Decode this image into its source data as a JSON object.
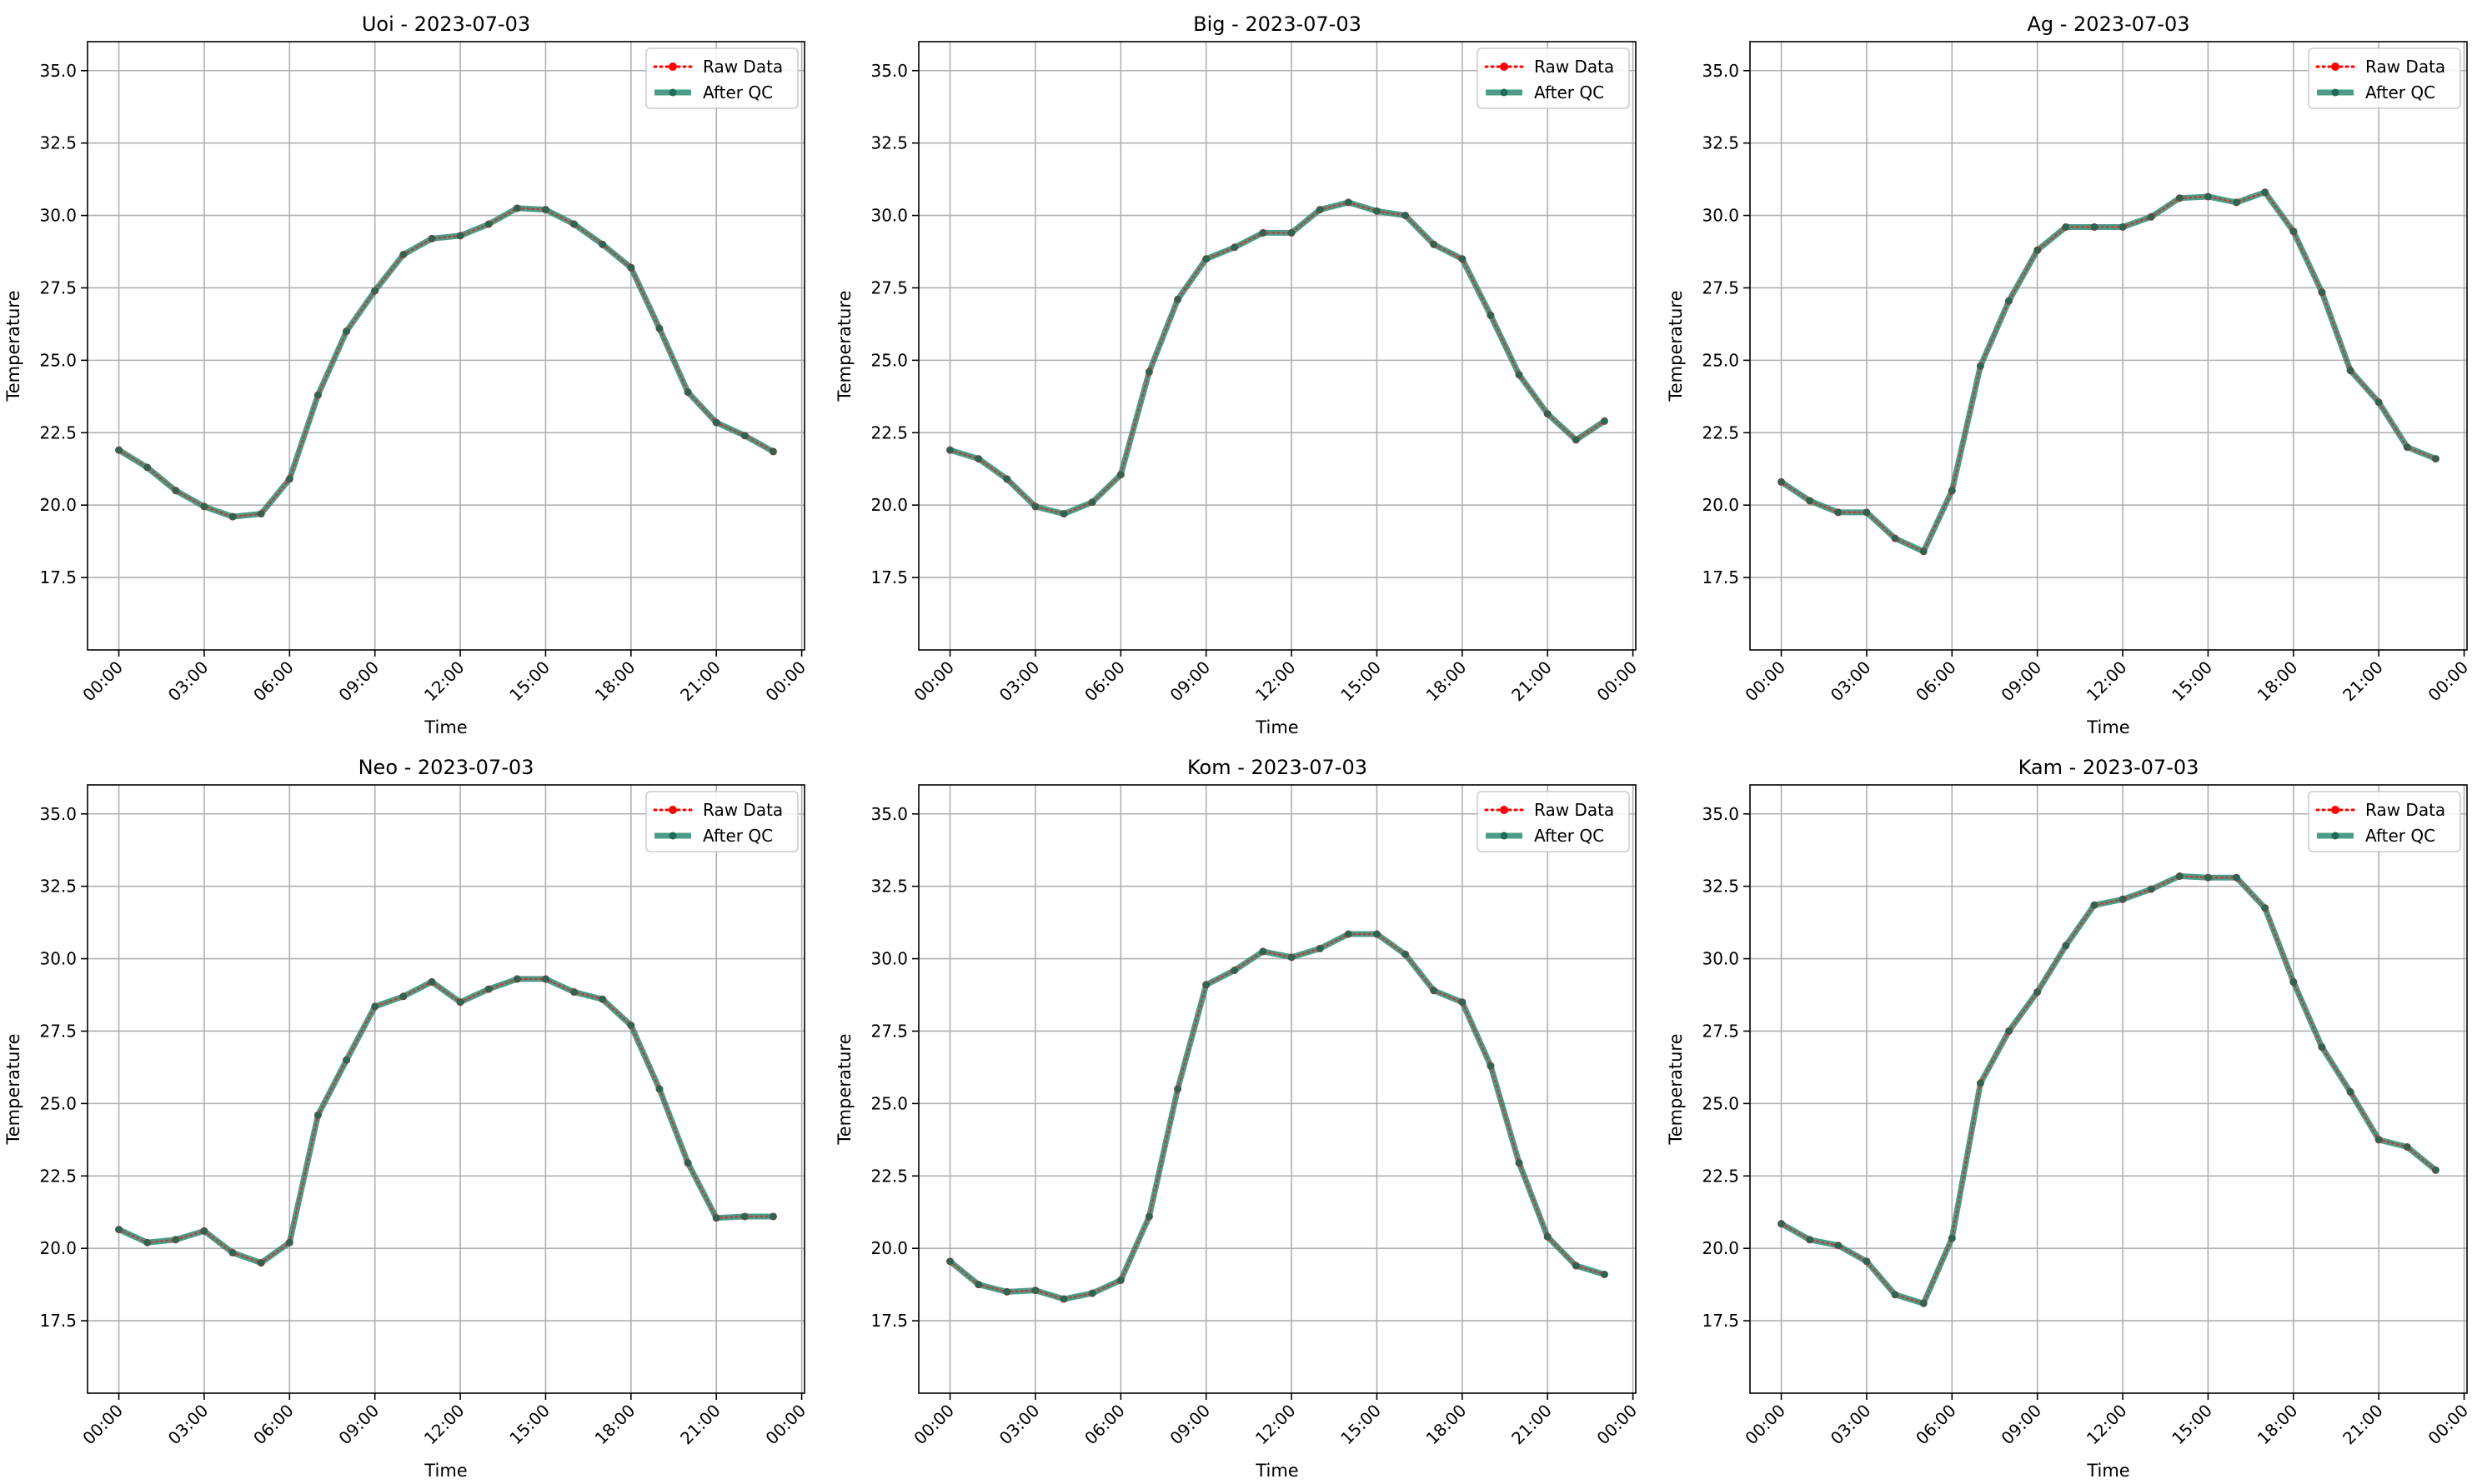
{
  "colors": {
    "raw": "#ff0000",
    "after_qc": "#2e8b74",
    "after_qc_marker": "#1f6b58",
    "grid": "#b0b0b0"
  },
  "chart_data": [
    {
      "type": "line",
      "title": "Uoi - 2023-07-03",
      "xlabel": "Time",
      "ylabel": "Temperature",
      "x": [
        "00:00",
        "01:00",
        "02:00",
        "03:00",
        "04:00",
        "05:00",
        "06:00",
        "07:00",
        "08:00",
        "09:00",
        "10:00",
        "11:00",
        "12:00",
        "13:00",
        "14:00",
        "15:00",
        "16:00",
        "17:00",
        "18:00",
        "19:00",
        "20:00",
        "21:00",
        "22:00",
        "23:00"
      ],
      "xticks": [
        "00:00",
        "03:00",
        "06:00",
        "09:00",
        "12:00",
        "15:00",
        "18:00",
        "21:00",
        "00:00"
      ],
      "yticks": [
        "17.5",
        "20.0",
        "22.5",
        "25.0",
        "27.5",
        "30.0",
        "32.5",
        "35.0"
      ],
      "ylim": [
        15.0,
        36.0
      ],
      "grid": true,
      "legend_position": "top-right",
      "series": [
        {
          "name": "Raw Data",
          "style": "dotted",
          "values": [
            21.9,
            21.3,
            20.5,
            19.95,
            19.6,
            19.7,
            20.9,
            23.8,
            26.0,
            27.4,
            28.65,
            29.2,
            29.3,
            29.7,
            30.25,
            30.2,
            29.7,
            29.0,
            28.2,
            26.1,
            23.9,
            22.85,
            22.4,
            21.85
          ]
        },
        {
          "name": "After QC",
          "style": "solid",
          "values": [
            21.9,
            21.3,
            20.5,
            19.95,
            19.6,
            19.7,
            20.9,
            23.8,
            26.0,
            27.4,
            28.65,
            29.2,
            29.3,
            29.7,
            30.25,
            30.2,
            29.7,
            29.0,
            28.2,
            26.1,
            23.9,
            22.85,
            22.4,
            21.85
          ]
        }
      ]
    },
    {
      "type": "line",
      "title": "Big - 2023-07-03",
      "xlabel": "Time",
      "ylabel": "Temperature",
      "x": [
        "00:00",
        "01:00",
        "02:00",
        "03:00",
        "04:00",
        "05:00",
        "06:00",
        "07:00",
        "08:00",
        "09:00",
        "10:00",
        "11:00",
        "12:00",
        "13:00",
        "14:00",
        "15:00",
        "16:00",
        "17:00",
        "18:00",
        "19:00",
        "20:00",
        "21:00",
        "22:00",
        "23:00"
      ],
      "xticks": [
        "00:00",
        "03:00",
        "06:00",
        "09:00",
        "12:00",
        "15:00",
        "18:00",
        "21:00",
        "00:00"
      ],
      "yticks": [
        "17.5",
        "20.0",
        "22.5",
        "25.0",
        "27.5",
        "30.0",
        "32.5",
        "35.0"
      ],
      "ylim": [
        15.0,
        36.0
      ],
      "grid": true,
      "legend_position": "top-right",
      "series": [
        {
          "name": "Raw Data",
          "style": "dotted",
          "values": [
            21.9,
            21.6,
            20.9,
            19.95,
            19.7,
            20.1,
            21.05,
            24.6,
            27.1,
            28.5,
            28.9,
            29.4,
            29.4,
            30.2,
            30.45,
            30.15,
            30.0,
            29.0,
            28.5,
            26.55,
            24.5,
            23.15,
            22.25,
            22.9
          ]
        },
        {
          "name": "After QC",
          "style": "solid",
          "values": [
            21.9,
            21.6,
            20.9,
            19.95,
            19.7,
            20.1,
            21.05,
            24.6,
            27.1,
            28.5,
            28.9,
            29.4,
            29.4,
            30.2,
            30.45,
            30.15,
            30.0,
            29.0,
            28.5,
            26.55,
            24.5,
            23.15,
            22.25,
            22.9
          ]
        }
      ]
    },
    {
      "type": "line",
      "title": "Ag - 2023-07-03",
      "xlabel": "Time",
      "ylabel": "Temperature",
      "x": [
        "00:00",
        "01:00",
        "02:00",
        "03:00",
        "04:00",
        "05:00",
        "06:00",
        "07:00",
        "08:00",
        "09:00",
        "10:00",
        "11:00",
        "12:00",
        "13:00",
        "14:00",
        "15:00",
        "16:00",
        "17:00",
        "18:00",
        "19:00",
        "20:00",
        "21:00",
        "22:00",
        "23:00"
      ],
      "xticks": [
        "00:00",
        "03:00",
        "06:00",
        "09:00",
        "12:00",
        "15:00",
        "18:00",
        "21:00",
        "00:00"
      ],
      "yticks": [
        "17.5",
        "20.0",
        "22.5",
        "25.0",
        "27.5",
        "30.0",
        "32.5",
        "35.0"
      ],
      "ylim": [
        15.0,
        36.0
      ],
      "grid": true,
      "legend_position": "top-right",
      "series": [
        {
          "name": "Raw Data",
          "style": "dotted",
          "values": [
            20.8,
            20.15,
            19.75,
            19.75,
            18.85,
            18.4,
            20.5,
            24.8,
            27.05,
            28.8,
            29.6,
            29.6,
            29.6,
            29.95,
            30.6,
            30.65,
            30.45,
            30.8,
            29.45,
            27.35,
            24.65,
            23.55,
            22.0,
            21.6
          ]
        },
        {
          "name": "After QC",
          "style": "solid",
          "values": [
            20.8,
            20.15,
            19.75,
            19.75,
            18.85,
            18.4,
            20.5,
            24.8,
            27.05,
            28.8,
            29.6,
            29.6,
            29.6,
            29.95,
            30.6,
            30.65,
            30.45,
            30.8,
            29.45,
            27.35,
            24.65,
            23.55,
            22.0,
            21.6
          ]
        }
      ]
    },
    {
      "type": "line",
      "title": "Neo - 2023-07-03",
      "xlabel": "Time",
      "ylabel": "Temperature",
      "x": [
        "00:00",
        "01:00",
        "02:00",
        "03:00",
        "04:00",
        "05:00",
        "06:00",
        "07:00",
        "08:00",
        "09:00",
        "10:00",
        "11:00",
        "12:00",
        "13:00",
        "14:00",
        "15:00",
        "16:00",
        "17:00",
        "18:00",
        "19:00",
        "20:00",
        "21:00",
        "22:00",
        "23:00"
      ],
      "xticks": [
        "00:00",
        "03:00",
        "06:00",
        "09:00",
        "12:00",
        "15:00",
        "18:00",
        "21:00",
        "00:00"
      ],
      "yticks": [
        "17.5",
        "20.0",
        "22.5",
        "25.0",
        "27.5",
        "30.0",
        "32.5",
        "35.0"
      ],
      "ylim": [
        15.0,
        36.0
      ],
      "grid": true,
      "legend_position": "top-right",
      "series": [
        {
          "name": "Raw Data",
          "style": "dotted",
          "values": [
            20.65,
            20.2,
            20.3,
            20.6,
            19.85,
            19.5,
            20.2,
            24.6,
            26.5,
            28.35,
            28.7,
            29.2,
            28.5,
            28.95,
            29.3,
            29.3,
            28.85,
            28.6,
            27.7,
            25.5,
            22.95,
            21.05,
            21.1,
            21.1
          ]
        },
        {
          "name": "After QC",
          "style": "solid",
          "values": [
            20.65,
            20.2,
            20.3,
            20.6,
            19.85,
            19.5,
            20.2,
            24.6,
            26.5,
            28.35,
            28.7,
            29.2,
            28.5,
            28.95,
            29.3,
            29.3,
            28.85,
            28.6,
            27.7,
            25.5,
            22.95,
            21.05,
            21.1,
            21.1
          ]
        }
      ]
    },
    {
      "type": "line",
      "title": "Kom - 2023-07-03",
      "xlabel": "Time",
      "ylabel": "Temperature",
      "x": [
        "00:00",
        "01:00",
        "02:00",
        "03:00",
        "04:00",
        "05:00",
        "06:00",
        "07:00",
        "08:00",
        "09:00",
        "10:00",
        "11:00",
        "12:00",
        "13:00",
        "14:00",
        "15:00",
        "16:00",
        "17:00",
        "18:00",
        "19:00",
        "20:00",
        "21:00",
        "22:00",
        "23:00"
      ],
      "xticks": [
        "00:00",
        "03:00",
        "06:00",
        "09:00",
        "12:00",
        "15:00",
        "18:00",
        "21:00",
        "00:00"
      ],
      "yticks": [
        "17.5",
        "20.0",
        "22.5",
        "25.0",
        "27.5",
        "30.0",
        "32.5",
        "35.0"
      ],
      "ylim": [
        15.0,
        36.0
      ],
      "grid": true,
      "legend_position": "top-right",
      "series": [
        {
          "name": "Raw Data",
          "style": "dotted",
          "values": [
            19.55,
            18.75,
            18.5,
            18.55,
            18.25,
            18.45,
            18.9,
            21.1,
            25.5,
            29.1,
            29.6,
            30.25,
            30.05,
            30.35,
            30.85,
            30.85,
            30.15,
            28.9,
            28.5,
            26.3,
            22.95,
            20.4,
            19.4,
            19.1
          ]
        },
        {
          "name": "After QC",
          "style": "solid",
          "values": [
            19.55,
            18.75,
            18.5,
            18.55,
            18.25,
            18.45,
            18.9,
            21.1,
            25.5,
            29.1,
            29.6,
            30.25,
            30.05,
            30.35,
            30.85,
            30.85,
            30.15,
            28.9,
            28.5,
            26.3,
            22.95,
            20.4,
            19.4,
            19.1
          ]
        }
      ]
    },
    {
      "type": "line",
      "title": "Kam - 2023-07-03",
      "xlabel": "Time",
      "ylabel": "Temperature",
      "x": [
        "00:00",
        "01:00",
        "02:00",
        "03:00",
        "04:00",
        "05:00",
        "06:00",
        "07:00",
        "08:00",
        "09:00",
        "10:00",
        "11:00",
        "12:00",
        "13:00",
        "14:00",
        "15:00",
        "16:00",
        "17:00",
        "18:00",
        "19:00",
        "20:00",
        "21:00",
        "22:00",
        "23:00"
      ],
      "xticks": [
        "00:00",
        "03:00",
        "06:00",
        "09:00",
        "12:00",
        "15:00",
        "18:00",
        "21:00",
        "00:00"
      ],
      "yticks": [
        "17.5",
        "20.0",
        "22.5",
        "25.0",
        "27.5",
        "30.0",
        "32.5",
        "35.0"
      ],
      "ylim": [
        15.0,
        36.0
      ],
      "grid": true,
      "legend_position": "top-right",
      "series": [
        {
          "name": "Raw Data",
          "style": "dotted",
          "values": [
            20.85,
            20.3,
            20.1,
            19.55,
            18.4,
            18.1,
            20.35,
            25.7,
            27.5,
            28.85,
            30.45,
            31.85,
            32.05,
            32.4,
            32.85,
            32.8,
            32.8,
            31.75,
            29.2,
            26.95,
            25.4,
            23.75,
            23.5,
            22.7
          ]
        },
        {
          "name": "After QC",
          "style": "solid",
          "values": [
            20.85,
            20.3,
            20.1,
            19.55,
            18.4,
            18.1,
            20.35,
            25.7,
            27.5,
            28.85,
            30.45,
            31.85,
            32.05,
            32.4,
            32.85,
            32.8,
            32.8,
            31.75,
            29.2,
            26.95,
            25.4,
            23.75,
            23.5,
            22.7
          ]
        }
      ]
    }
  ]
}
